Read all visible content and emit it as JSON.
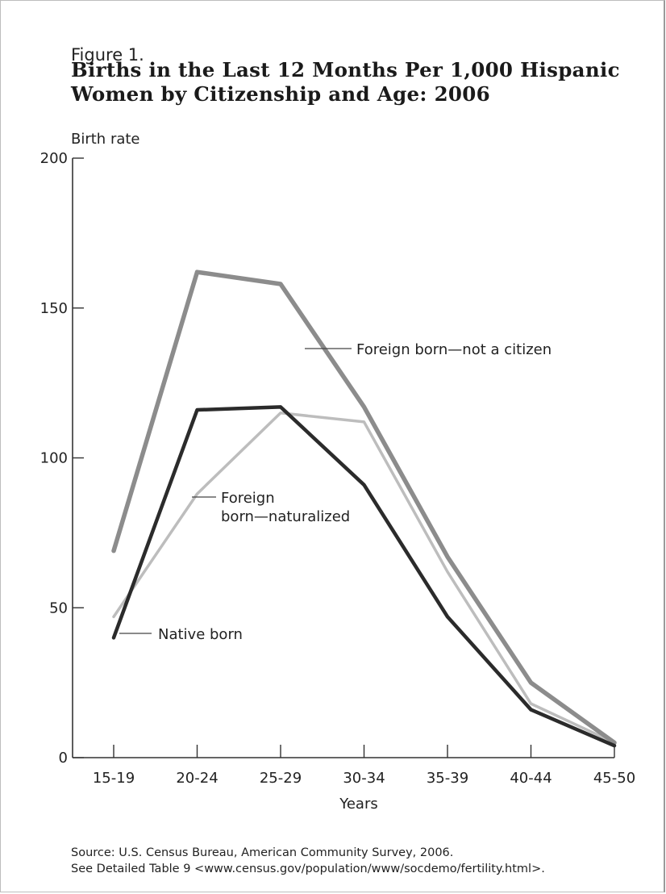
{
  "figure_label": "Figure 1.",
  "title_lines": [
    "Births in the Last 12 Months Per 1,000 Hispanic",
    "Women by Citizenship and Age: 2006"
  ],
  "source_lines": [
    "Source: U.S. Census Bureau, American Community Survey, 2006.",
    "See Detailed Table 9 <www.census.gov/population/www/socdemo/fertility.html>."
  ],
  "colors": {
    "foreign_not_citizen": "#8c8c8c",
    "foreign_naturalized": "#bdbdbd",
    "native": "#2b2b2b",
    "axis": "#333333"
  },
  "chart_data": {
    "type": "line",
    "title": "Births in the Last 12 Months Per 1,000 Hispanic Women by Citizenship and Age: 2006",
    "xlabel": "Years",
    "ylabel": "Birth rate",
    "categories": [
      "15-19",
      "20-24",
      "25-29",
      "30-34",
      "35-39",
      "40-44",
      "45-50"
    ],
    "yticks": [
      0,
      50,
      100,
      150,
      200
    ],
    "ylim": [
      0,
      200
    ],
    "grid": false,
    "series": [
      {
        "name": "Foreign born—not a citizen",
        "values": [
          69,
          162,
          158,
          117,
          67,
          25,
          5
        ]
      },
      {
        "name": "Foreign born—naturalized",
        "values": [
          47,
          88,
          115,
          112,
          62,
          18,
          5
        ]
      },
      {
        "name": "Native born",
        "values": [
          40,
          116,
          117,
          91,
          47,
          16,
          4
        ]
      }
    ],
    "annotations": [
      {
        "lines": [
          "Foreign born—not a citizen"
        ],
        "series": "Foreign born—not a citizen"
      },
      {
        "lines": [
          "Foreign",
          "born—naturalized"
        ],
        "series": "Foreign born—naturalized"
      },
      {
        "lines": [
          "Native born"
        ],
        "series": "Native born"
      }
    ]
  }
}
